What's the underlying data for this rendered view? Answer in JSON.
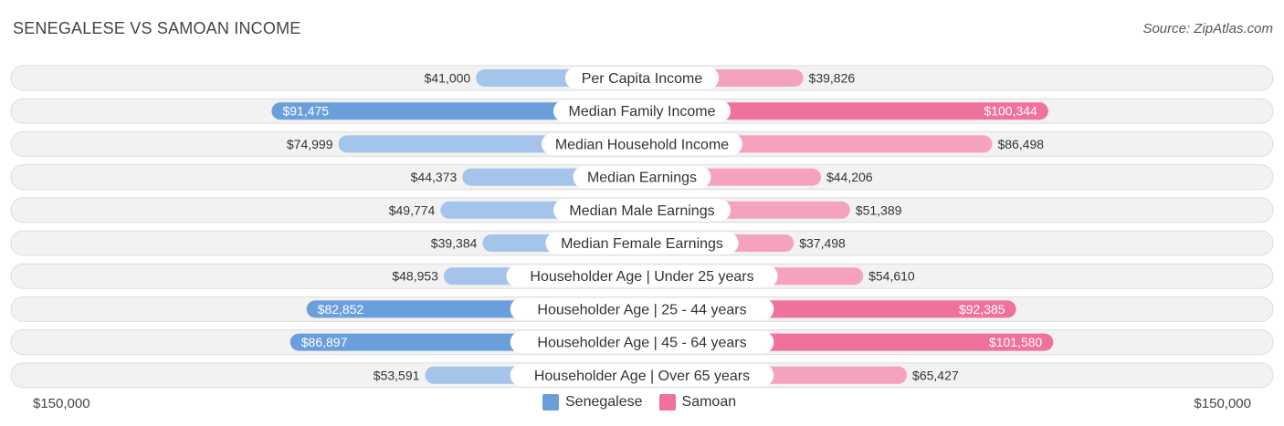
{
  "title": "SENEGALESE VS SAMOAN INCOME",
  "source": "Source: ZipAtlas.com",
  "colors": {
    "senegalese_light": "#a4c4ea",
    "senegalese_dark": "#6a9fdc",
    "samoan_light": "#f5a3bd",
    "samoan_dark": "#f0719a",
    "row_bg": "#f2f2f2",
    "row_border": "#dddddd"
  },
  "legend": {
    "senegalese": "Senegalese",
    "samoan": "Samoan"
  },
  "axis": {
    "left_label": "$150,000",
    "right_label": "$150,000"
  },
  "chart_data": {
    "type": "bar",
    "title": "SENEGALESE VS SAMOAN INCOME",
    "max": 150000,
    "categories": [
      "Per Capita Income",
      "Median Family Income",
      "Median Household Income",
      "Median Earnings",
      "Median Male Earnings",
      "Median Female Earnings",
      "Householder Age | Under 25 years",
      "Householder Age | 25 - 44 years",
      "Householder Age | 45 - 64 years",
      "Householder Age | Over 65 years"
    ],
    "series": [
      {
        "name": "Senegalese",
        "values": [
          41000,
          91475,
          74999,
          44373,
          49774,
          39384,
          48953,
          82852,
          86897,
          53591
        ],
        "labels": [
          "$41,000",
          "$91,475",
          "$74,999",
          "$44,373",
          "$49,774",
          "$39,384",
          "$48,953",
          "$82,852",
          "$86,897",
          "$53,591"
        ]
      },
      {
        "name": "Samoan",
        "values": [
          39826,
          100344,
          86498,
          44206,
          51389,
          37498,
          54610,
          92385,
          101580,
          65427
        ],
        "labels": [
          "$39,826",
          "$100,344",
          "$86,498",
          "$44,206",
          "$51,389",
          "$37,498",
          "$54,610",
          "$92,385",
          "$101,580",
          "$65,427"
        ]
      }
    ],
    "highlight_rows": [
      1,
      7,
      8
    ],
    "legend_position": "bottom-center"
  }
}
